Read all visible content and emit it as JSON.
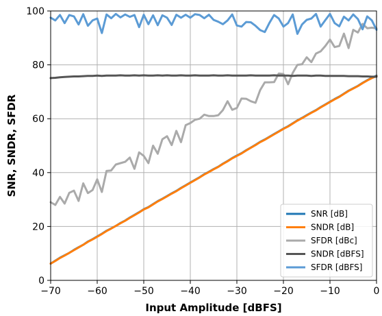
{
  "chart_data": {
    "type": "line",
    "xlabel": "Input Amplitude [dBFS]",
    "ylabel": "SNR, SNDR, SFDR",
    "xlim": [
      -70,
      0
    ],
    "ylim": [
      0,
      100
    ],
    "xticks": [
      "−70",
      "−60",
      "−50",
      "−40",
      "−30",
      "−20",
      "−10",
      "0"
    ],
    "yticks": [
      "0",
      "20",
      "40",
      "60",
      "80",
      "100"
    ],
    "grid": true,
    "legend_position": "bottom-right",
    "series": [
      {
        "name": "SNR [dB]",
        "color": "#1f77b4",
        "x": [
          -70,
          -69,
          -68,
          -67,
          -66,
          -65,
          -64,
          -63,
          -62,
          -61,
          -60,
          -59,
          -58,
          -57,
          -56,
          -55,
          -54,
          -53,
          -52,
          -51,
          -50,
          -49,
          -48,
          -47,
          -46,
          -45,
          -44,
          -43,
          -42,
          -41,
          -40,
          -39,
          -38,
          -37,
          -36,
          -35,
          -34,
          -33,
          -32,
          -31,
          -30,
          -29,
          -28,
          -27,
          -26,
          -25,
          -24,
          -23,
          -22,
          -21,
          -20,
          -19,
          -18,
          -17,
          -16,
          -15,
          -14,
          -13,
          -12,
          -11,
          -10,
          -9,
          -8,
          -7,
          -6,
          -5,
          -4,
          -3,
          -2,
          -1,
          0
        ],
        "y": [
          6.2,
          7.3,
          8.4,
          9.3,
          10.2,
          11.3,
          12.3,
          13.2,
          14.4,
          15.3,
          16.3,
          17.3,
          18.4,
          19.3,
          20.2,
          21.3,
          22.2,
          23.3,
          24.3,
          25.3,
          26.4,
          27.2,
          28.3,
          29.4,
          30.3,
          31.3,
          32.3,
          33.2,
          34.3,
          35.3,
          36.3,
          37.3,
          38.3,
          39.4,
          40.3,
          41.3,
          42.2,
          43.3,
          44.3,
          45.4,
          46.3,
          47.2,
          48.3,
          49.3,
          50.3,
          51.4,
          52.3,
          53.3,
          54.3,
          55.3,
          56.3,
          57.2,
          58.3,
          59.4,
          60.3,
          61.3,
          62.3,
          63.2,
          64.3,
          65.3,
          66.3,
          67.3,
          68.2,
          69.3,
          70.4,
          71.3,
          72.2,
          73.3,
          74.3,
          75.2,
          76.0
        ]
      },
      {
        "name": "SNDR [dB]",
        "color": "#ff7f0e",
        "x": [
          -70,
          -69,
          -68,
          -67,
          -66,
          -65,
          -64,
          -63,
          -62,
          -61,
          -60,
          -59,
          -58,
          -57,
          -56,
          -55,
          -54,
          -53,
          -52,
          -51,
          -50,
          -49,
          -48,
          -47,
          -46,
          -45,
          -44,
          -43,
          -42,
          -41,
          -40,
          -39,
          -38,
          -37,
          -36,
          -35,
          -34,
          -33,
          -32,
          -31,
          -30,
          -29,
          -28,
          -27,
          -26,
          -25,
          -24,
          -23,
          -22,
          -21,
          -20,
          -19,
          -18,
          -17,
          -16,
          -15,
          -14,
          -13,
          -12,
          -11,
          -10,
          -9,
          -8,
          -7,
          -6,
          -5,
          -4,
          -3,
          -2,
          -1,
          0
        ],
        "y": [
          6.2,
          7.2,
          8.3,
          9.2,
          10.2,
          11.2,
          12.2,
          13.2,
          14.3,
          15.2,
          16.2,
          17.2,
          18.3,
          19.2,
          20.2,
          21.2,
          22.1,
          23.2,
          24.2,
          25.2,
          26.3,
          27.1,
          28.2,
          29.3,
          30.2,
          31.2,
          32.2,
          33.1,
          34.2,
          35.2,
          36.2,
          37.2,
          38.2,
          39.3,
          40.2,
          41.2,
          42.1,
          43.2,
          44.2,
          45.3,
          46.2,
          47.1,
          48.2,
          49.2,
          50.2,
          51.3,
          52.2,
          53.2,
          54.2,
          55.2,
          56.2,
          57.1,
          58.2,
          59.3,
          60.2,
          61.2,
          62.2,
          63.1,
          64.2,
          65.2,
          66.2,
          67.2,
          68.1,
          69.2,
          70.3,
          71.2,
          72.1,
          73.2,
          74.2,
          75.1,
          75.8
        ]
      },
      {
        "name": "SFDR [dBc]",
        "color": "#aaaaaa",
        "x": [
          -70,
          -69,
          -68,
          -67,
          -66,
          -65,
          -64,
          -63,
          -62,
          -61,
          -60,
          -59,
          -58,
          -57,
          -56,
          -55,
          -54,
          -53,
          -52,
          -51,
          -50,
          -49,
          -48,
          -47,
          -46,
          -45,
          -44,
          -43,
          -42,
          -41,
          -40,
          -39,
          -38,
          -37,
          -36,
          -35,
          -34,
          -33,
          -32,
          -31,
          -30,
          -29,
          -28,
          -27,
          -26,
          -25,
          -24,
          -23,
          -22,
          -21,
          -20,
          -19,
          -18,
          -17,
          -16,
          -15,
          -14,
          -13,
          -12,
          -11,
          -10,
          -9,
          -8,
          -7,
          -6,
          -5,
          -4,
          -3,
          -2,
          -1,
          0
        ],
        "y": [
          29,
          28,
          31,
          28.5,
          32.5,
          33.3,
          29.5,
          36,
          32.4,
          33.5,
          37.5,
          32.8,
          40.6,
          40.8,
          43,
          43.5,
          44,
          45.6,
          41.4,
          47.5,
          46.2,
          43.5,
          50,
          47,
          52.4,
          53.5,
          50.2,
          55.5,
          51.3,
          57.6,
          58.4,
          59.6,
          60,
          61.5,
          61,
          61,
          61.3,
          63.2,
          66.5,
          63.3,
          64,
          67.5,
          67.4,
          66.5,
          65.9,
          70.6,
          73.5,
          73.5,
          73.6,
          76.8,
          76.6,
          72.8,
          77,
          80,
          80.2,
          82.8,
          81,
          84.2,
          85,
          87,
          89.4,
          86.6,
          87,
          91.6,
          86.2,
          93,
          92,
          95.2,
          93.6,
          93.8,
          93.5
        ]
      },
      {
        "name": "SNDR [dBFS]",
        "color": "#555555",
        "x": [
          -70,
          -69,
          -68,
          -67,
          -66,
          -65,
          -64,
          -63,
          -62,
          -61,
          -60,
          -59,
          -58,
          -57,
          -56,
          -55,
          -54,
          -53,
          -52,
          -51,
          -50,
          -49,
          -48,
          -47,
          -46,
          -45,
          -44,
          -43,
          -42,
          -41,
          -40,
          -39,
          -38,
          -37,
          -36,
          -35,
          -34,
          -33,
          -32,
          -31,
          -30,
          -29,
          -28,
          -27,
          -26,
          -25,
          -24,
          -23,
          -22,
          -21,
          -20,
          -19,
          -18,
          -17,
          -16,
          -15,
          -14,
          -13,
          -12,
          -11,
          -10,
          -9,
          -8,
          -7,
          -6,
          -5,
          -4,
          -3,
          -2,
          -1,
          0
        ],
        "y": [
          75.1,
          75.2,
          75.4,
          75.5,
          75.6,
          75.7,
          75.7,
          75.8,
          75.9,
          75.9,
          76.0,
          75.9,
          76.0,
          76.0,
          76.0,
          76.1,
          76.0,
          76.0,
          76.1,
          76.0,
          76.1,
          76.0,
          76.0,
          76.1,
          76.0,
          76.1,
          76.0,
          76.0,
          76.1,
          76.0,
          76.0,
          76.1,
          76.0,
          76.0,
          76.0,
          76.1,
          76.0,
          76.0,
          76.1,
          76.0,
          76.0,
          76.0,
          76.0,
          76.1,
          76.0,
          76.0,
          76.0,
          76.0,
          76.1,
          76.0,
          76.0,
          76.0,
          75.9,
          76.0,
          76.0,
          76.0,
          75.9,
          76.0,
          76.0,
          75.9,
          75.9,
          75.9,
          75.9,
          75.9,
          75.8,
          75.8,
          75.8,
          75.7,
          75.7,
          75.6,
          75.6
        ]
      },
      {
        "name": "SFDR [dBFS]",
        "color": "#5b9bd5",
        "x": [
          -70,
          -69,
          -68,
          -67,
          -66,
          -65,
          -64,
          -63,
          -62,
          -61,
          -60,
          -59,
          -58,
          -57,
          -56,
          -55,
          -54,
          -53,
          -52,
          -51,
          -50,
          -49,
          -48,
          -47,
          -46,
          -45,
          -44,
          -43,
          -42,
          -41,
          -40,
          -39,
          -38,
          -37,
          -36,
          -35,
          -34,
          -33,
          -32,
          -31,
          -30,
          -29,
          -28,
          -27,
          -26,
          -25,
          -24,
          -23,
          -22,
          -21,
          -20,
          -19,
          -18,
          -17,
          -16,
          -15,
          -14,
          -13,
          -12,
          -11,
          -10,
          -9,
          -8,
          -7,
          -6,
          -5,
          -4,
          -3,
          -2,
          -1,
          0
        ],
        "y": [
          97.5,
          96.5,
          98.5,
          95.5,
          98.5,
          98.0,
          95.0,
          98.8,
          94.5,
          96.5,
          97.2,
          91.8,
          98.7,
          97.3,
          98.9,
          97.6,
          98.7,
          97.8,
          98.5,
          94.0,
          98.6,
          95.1,
          98.4,
          94.7,
          98.4,
          97.5,
          94.8,
          98.6,
          97.5,
          98.6,
          97.5,
          98.8,
          98.5,
          97.3,
          98.6,
          96.7,
          96.0,
          95.1,
          96.5,
          98.7,
          94.6,
          94.2,
          95.9,
          95.8,
          94.5,
          92.9,
          92.2,
          95.6,
          98.5,
          97.2,
          94.2,
          95.5,
          98.7,
          91.5,
          95.0,
          96.7,
          97.2,
          98.9,
          94.2,
          96.6,
          98.9,
          95.5,
          94.3,
          97.9,
          96.5,
          98.7,
          97.0,
          93.2,
          98.0,
          96.5,
          93.0
        ]
      }
    ]
  }
}
